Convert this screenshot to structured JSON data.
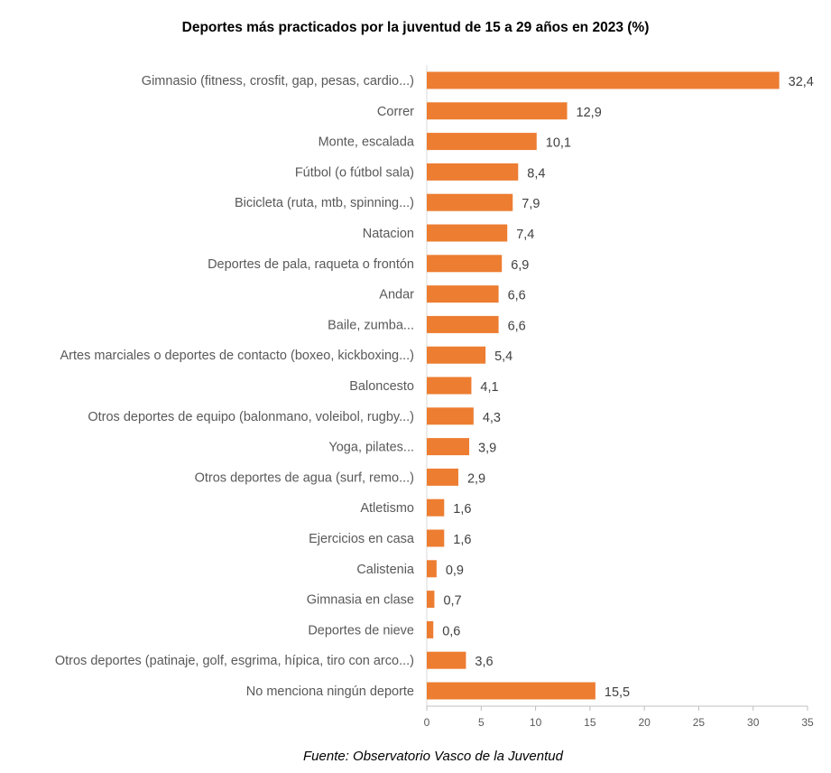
{
  "chart_data": {
    "type": "bar",
    "orientation": "horizontal",
    "title": "Deportes más practicados por la juventud de 15 a 29 años en 2023 (%)",
    "categories": [
      "Gimnasio (fitness, crosfit, gap, pesas, cardio...)",
      "Correr",
      "Monte, escalada",
      "Fútbol (o fútbol sala)",
      "Bicicleta (ruta, mtb, spinning...)",
      "Natacion",
      "Deportes de pala,  raqueta o frontón",
      "Andar",
      "Baile, zumba...",
      "Artes marciales o deportes de contacto (boxeo, kickboxing...)",
      "Baloncesto",
      "Otros deportes de equipo (balonmano, voleibol, rugby...)",
      "Yoga, pilates...",
      "Otros deportes de agua  (surf, remo...)",
      "Atletismo",
      "Ejercicios en casa",
      "Calistenia",
      "Gimnasia en clase",
      "Deportes de nieve",
      "Otros deportes (patinaje, golf, esgrima, hípica,  tiro con arco...)",
      "No menciona ningún deporte"
    ],
    "values": [
      32.4,
      12.9,
      10.1,
      8.4,
      7.9,
      7.4,
      6.9,
      6.6,
      6.6,
      5.4,
      4.1,
      4.3,
      3.9,
      2.9,
      1.6,
      1.6,
      0.9,
      0.7,
      0.6,
      3.6,
      15.5
    ],
    "data_labels": [
      "32,4",
      "12,9",
      "10,1",
      "8,4",
      "7,9",
      "7,4",
      "6,9",
      "6,6",
      "6,6",
      "5,4",
      "4,1",
      "4,3",
      "3,9",
      "2,9",
      "1,6",
      "1,6",
      "0,9",
      "0,7",
      "0,6",
      "3,6",
      "15,5"
    ],
    "xlim": [
      0,
      35
    ],
    "x_ticks": [
      "0",
      "5",
      "10",
      "15",
      "20",
      "25",
      "30",
      "35"
    ],
    "xlabel": "",
    "ylabel": "",
    "grid": false,
    "bar_color": "#ED7D31",
    "source": "Fuente: Observatorio Vasco de la Juventud"
  }
}
